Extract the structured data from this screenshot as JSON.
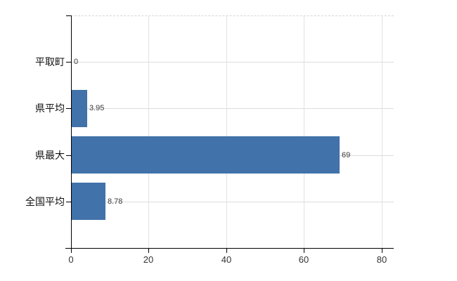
{
  "chart_data": {
    "type": "bar",
    "orientation": "horizontal",
    "categories": [
      "平取町",
      "県平均",
      "県最大",
      "全国平均"
    ],
    "values": [
      0,
      3.95,
      69,
      8.78
    ],
    "value_labels": [
      "0",
      "3.95",
      "69",
      "8.78"
    ],
    "x_ticks": [
      0,
      20,
      40,
      60,
      80
    ],
    "x_tick_labels": [
      "0",
      "20",
      "40",
      "60",
      "80"
    ],
    "xlim": [
      0,
      83
    ],
    "grid": {
      "vertical": true,
      "horizontal": true,
      "top_border": "dashed",
      "legend": "none"
    },
    "colors": {
      "bar": "#4172a9",
      "grid_vertical": "#e2e2e2",
      "grid_horizontal": "#dcdcdc",
      "top_border": "#d6d6d6",
      "axis": "#000000",
      "category_label": "#111111",
      "tick_label": "#333333",
      "value_label": "#3a3a3a",
      "background": "#ffffff"
    }
  }
}
